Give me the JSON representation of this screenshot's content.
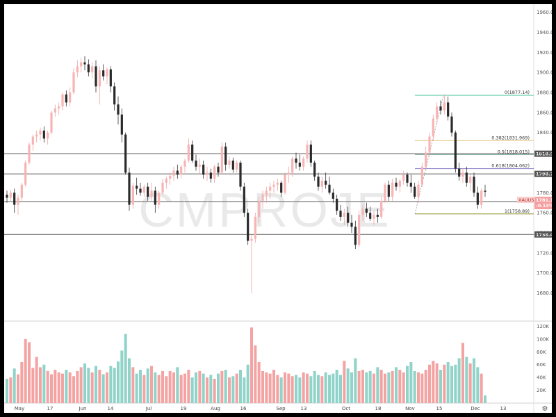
{
  "chart_data": {
    "type": "candlestick",
    "symbol": "XAUUSD",
    "watermark": "CMPROJE",
    "last_price": "1781.120",
    "change_pct": "-0.13%",
    "ylim": [
      1652,
      1968
    ],
    "volume_ylim": [
      0,
      128000
    ],
    "price_ticks": [
      "1960.000",
      "1940.000",
      "1920.000",
      "1900.000",
      "1880.000",
      "1860.000",
      "1840.000",
      "1820.000",
      "1800.000",
      "1780.000",
      "1760.000",
      "1740.000",
      "1720.000",
      "1700.000",
      "1680.000"
    ],
    "volume_ticks": [
      "120K",
      "100K",
      "80K",
      "60K",
      "40K",
      "20K"
    ],
    "x_ticks": [
      "May",
      "17",
      "Jun",
      "14",
      "Jul",
      "19",
      "Aug",
      "16",
      "Sep",
      "13",
      "Oct",
      "18",
      "Nov",
      "15",
      "Dec",
      "13"
    ],
    "horizontal_levels": [
      {
        "label": "1818.900",
        "value": 1818.9
      },
      {
        "label": "1798.760",
        "value": 1798.76
      },
      {
        "label": "1771.100",
        "value": 1771.1
      },
      {
        "label": "1738.400",
        "value": 1738.4
      }
    ],
    "fibonacci": [
      {
        "label": "0(1877.14)",
        "value": 1877.14,
        "color": "#7fd6b8"
      },
      {
        "label": "0.382(1831.969)",
        "value": 1831.969,
        "color": "#e8c98a"
      },
      {
        "label": "0.5(1818.015)",
        "value": 1818.015,
        "color": "#8fb8a8"
      },
      {
        "label": "0.618(1804.062)",
        "value": 1804.062,
        "color": "#9a8fd0"
      },
      {
        "label": "1(1758.89)",
        "value": 1758.89,
        "color": "#a0a850"
      }
    ],
    "colors": {
      "up": "#f8b4b4",
      "down": "#2a2a2a",
      "vol_up": "#f4a3a3",
      "vol_down": "#8fd3c9",
      "level": "#787878"
    },
    "candles": [
      [
        1778,
        1782,
        1770,
        1775
      ],
      [
        1775,
        1783,
        1771,
        1780
      ],
      [
        1780,
        1784,
        1760,
        1768
      ],
      [
        1768,
        1778,
        1758,
        1775
      ],
      [
        1775,
        1790,
        1772,
        1788
      ],
      [
        1788,
        1812,
        1786,
        1810
      ],
      [
        1810,
        1830,
        1808,
        1828
      ],
      [
        1828,
        1838,
        1822,
        1836
      ],
      [
        1836,
        1842,
        1830,
        1838
      ],
      [
        1838,
        1845,
        1832,
        1842
      ],
      [
        1842,
        1846,
        1830,
        1834
      ],
      [
        1834,
        1842,
        1828,
        1840
      ],
      [
        1840,
        1862,
        1838,
        1860
      ],
      [
        1860,
        1868,
        1856,
        1864
      ],
      [
        1864,
        1870,
        1858,
        1866
      ],
      [
        1866,
        1880,
        1862,
        1878
      ],
      [
        1878,
        1882,
        1866,
        1870
      ],
      [
        1870,
        1885,
        1866,
        1880
      ],
      [
        1880,
        1904,
        1878,
        1900
      ],
      [
        1900,
        1912,
        1895,
        1906
      ],
      [
        1906,
        1914,
        1900,
        1910
      ],
      [
        1910,
        1916,
        1902,
        1908
      ],
      [
        1908,
        1913,
        1896,
        1900
      ],
      [
        1900,
        1910,
        1894,
        1906
      ],
      [
        1906,
        1912,
        1880,
        1886
      ],
      [
        1886,
        1906,
        1868,
        1902
      ],
      [
        1902,
        1908,
        1892,
        1896
      ],
      [
        1896,
        1905,
        1888,
        1903
      ],
      [
        1903,
        1906,
        1880,
        1886
      ],
      [
        1886,
        1890,
        1862,
        1868
      ],
      [
        1868,
        1876,
        1848,
        1858
      ],
      [
        1858,
        1864,
        1830,
        1838
      ],
      [
        1838,
        1840,
        1798,
        1800
      ],
      [
        1800,
        1805,
        1762,
        1768
      ],
      [
        1768,
        1790,
        1764,
        1787
      ],
      [
        1787,
        1795,
        1778,
        1784
      ],
      [
        1784,
        1790,
        1777,
        1780
      ],
      [
        1780,
        1788,
        1776,
        1786
      ],
      [
        1786,
        1790,
        1772,
        1776
      ],
      [
        1776,
        1790,
        1772,
        1782
      ],
      [
        1782,
        1786,
        1760,
        1768
      ],
      [
        1768,
        1782,
        1764,
        1780
      ],
      [
        1780,
        1794,
        1778,
        1790
      ],
      [
        1790,
        1796,
        1784,
        1794
      ],
      [
        1794,
        1800,
        1788,
        1797
      ],
      [
        1797,
        1806,
        1792,
        1802
      ],
      [
        1802,
        1808,
        1794,
        1798
      ],
      [
        1798,
        1808,
        1794,
        1806
      ],
      [
        1806,
        1814,
        1800,
        1812
      ],
      [
        1812,
        1834,
        1810,
        1828
      ],
      [
        1828,
        1832,
        1810,
        1812
      ],
      [
        1812,
        1818,
        1802,
        1806
      ],
      [
        1806,
        1814,
        1798,
        1808
      ],
      [
        1808,
        1812,
        1794,
        1798
      ],
      [
        1798,
        1806,
        1792,
        1800
      ],
      [
        1800,
        1804,
        1790,
        1794
      ],
      [
        1794,
        1808,
        1790,
        1806
      ],
      [
        1806,
        1810,
        1796,
        1800
      ],
      [
        1800,
        1830,
        1798,
        1826
      ],
      [
        1826,
        1830,
        1802,
        1808
      ],
      [
        1808,
        1816,
        1804,
        1812
      ],
      [
        1812,
        1815,
        1800,
        1803
      ],
      [
        1803,
        1812,
        1800,
        1810
      ],
      [
        1810,
        1812,
        1782,
        1786
      ],
      [
        1786,
        1790,
        1756,
        1760
      ],
      [
        1760,
        1764,
        1728,
        1732
      ],
      [
        1732,
        1738,
        1680,
        1734
      ],
      [
        1734,
        1760,
        1730,
        1756
      ],
      [
        1756,
        1776,
        1750,
        1772
      ],
      [
        1772,
        1782,
        1764,
        1778
      ],
      [
        1778,
        1786,
        1770,
        1782
      ],
      [
        1782,
        1790,
        1774,
        1786
      ],
      [
        1786,
        1792,
        1780,
        1788
      ],
      [
        1788,
        1794,
        1782,
        1790
      ],
      [
        1790,
        1792,
        1776,
        1780
      ],
      [
        1780,
        1800,
        1778,
        1798
      ],
      [
        1798,
        1806,
        1790,
        1800
      ],
      [
        1800,
        1816,
        1796,
        1814
      ],
      [
        1814,
        1820,
        1804,
        1810
      ],
      [
        1810,
        1818,
        1802,
        1806
      ],
      [
        1806,
        1816,
        1802,
        1814
      ],
      [
        1814,
        1832,
        1810,
        1828
      ],
      [
        1828,
        1832,
        1806,
        1810
      ],
      [
        1810,
        1812,
        1792,
        1796
      ],
      [
        1796,
        1800,
        1782,
        1786
      ],
      [
        1786,
        1796,
        1780,
        1792
      ],
      [
        1792,
        1800,
        1784,
        1788
      ],
      [
        1788,
        1796,
        1778,
        1780
      ],
      [
        1780,
        1784,
        1770,
        1774
      ],
      [
        1774,
        1778,
        1758,
        1762
      ],
      [
        1762,
        1768,
        1752,
        1756
      ],
      [
        1756,
        1764,
        1748,
        1760
      ],
      [
        1760,
        1766,
        1746,
        1750
      ],
      [
        1750,
        1758,
        1740,
        1746
      ],
      [
        1746,
        1752,
        1724,
        1728
      ],
      [
        1728,
        1762,
        1726,
        1758
      ],
      [
        1758,
        1768,
        1752,
        1764
      ],
      [
        1764,
        1770,
        1756,
        1760
      ],
      [
        1760,
        1766,
        1752,
        1754
      ],
      [
        1754,
        1762,
        1748,
        1758
      ],
      [
        1758,
        1764,
        1750,
        1756
      ],
      [
        1756,
        1776,
        1754,
        1772
      ],
      [
        1772,
        1790,
        1770,
        1788
      ],
      [
        1788,
        1792,
        1772,
        1776
      ],
      [
        1776,
        1794,
        1772,
        1790
      ],
      [
        1790,
        1795,
        1782,
        1786
      ],
      [
        1786,
        1794,
        1780,
        1792
      ],
      [
        1792,
        1802,
        1788,
        1798
      ],
      [
        1798,
        1800,
        1786,
        1790
      ],
      [
        1790,
        1798,
        1780,
        1786
      ],
      [
        1786,
        1790,
        1774,
        1776
      ],
      [
        1776,
        1792,
        1770,
        1788
      ],
      [
        1788,
        1810,
        1786,
        1806
      ],
      [
        1806,
        1826,
        1802,
        1820
      ],
      [
        1820,
        1840,
        1816,
        1836
      ],
      [
        1836,
        1858,
        1832,
        1854
      ],
      [
        1854,
        1870,
        1848,
        1866
      ],
      [
        1866,
        1872,
        1858,
        1862
      ],
      [
        1862,
        1878,
        1858,
        1870
      ],
      [
        1870,
        1876,
        1852,
        1856
      ],
      [
        1856,
        1860,
        1836,
        1840
      ],
      [
        1840,
        1842,
        1800,
        1804
      ],
      [
        1804,
        1810,
        1792,
        1796
      ],
      [
        1796,
        1804,
        1790,
        1800
      ],
      [
        1800,
        1806,
        1786,
        1790
      ],
      [
        1790,
        1798,
        1782,
        1796
      ],
      [
        1796,
        1800,
        1776,
        1780
      ],
      [
        1780,
        1786,
        1764,
        1768
      ],
      [
        1768,
        1784,
        1764,
        1782
      ],
      [
        1782,
        1788,
        1776,
        1781
      ]
    ],
    "volume": [
      38,
      40,
      54,
      45,
      64,
      100,
      95,
      55,
      72,
      56,
      60,
      50,
      45,
      52,
      48,
      46,
      52,
      48,
      42,
      50,
      56,
      62,
      55,
      48,
      58,
      52,
      45,
      48,
      58,
      55,
      65,
      82,
      108,
      70,
      56,
      46,
      52,
      44,
      54,
      58,
      48,
      44,
      50,
      42,
      50,
      48,
      56,
      44,
      46,
      52,
      40,
      48,
      50,
      46,
      40,
      44,
      38,
      46,
      50,
      52,
      40,
      42,
      46,
      52,
      40,
      60,
      118,
      90,
      64,
      50,
      48,
      46,
      52,
      44,
      40,
      48,
      46,
      42,
      44,
      40,
      48,
      46,
      42,
      50,
      44,
      42,
      48,
      44,
      46,
      52,
      44,
      66,
      54,
      48,
      70,
      50,
      52,
      48,
      50,
      46,
      56,
      52,
      46,
      48,
      50,
      56,
      52,
      48,
      58,
      64,
      50,
      48,
      46,
      52,
      60,
      66,
      62,
      52,
      60,
      64,
      58,
      60,
      70,
      94,
      72,
      62,
      70,
      56,
      46,
      12
    ],
    "dec_drift": 0
  }
}
